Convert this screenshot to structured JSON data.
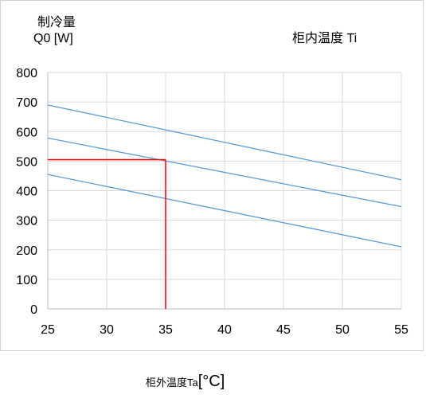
{
  "chart_data": {
    "type": "line",
    "ylabel_line1": "制冷量",
    "ylabel_line2": "Q0 [W]",
    "series_title": "柜内温度  Ti",
    "xlabel_text": "柜外温度Ta",
    "xlabel_unit": "[°C]",
    "xlim": [
      25,
      55
    ],
    "ylim": [
      0,
      800
    ],
    "x_ticks": [
      "25",
      "30",
      "35",
      "40",
      "45",
      "50",
      "55"
    ],
    "y_ticks": [
      "800",
      "700",
      "600",
      "500",
      "400",
      "300",
      "200",
      "100",
      "0"
    ],
    "grid": true,
    "series": [
      {
        "x": [
          25,
          55
        ],
        "values": [
          690,
          437
        ]
      },
      {
        "x": [
          25,
          55
        ],
        "values": [
          578,
          346
        ]
      },
      {
        "x": [
          25,
          55
        ],
        "values": [
          455,
          210
        ]
      }
    ],
    "reference": {
      "x": 35,
      "y": 505
    },
    "colors": {
      "series": "#5b9bd5",
      "reference": "#ff0000",
      "grid": "#d9d9d9"
    }
  }
}
